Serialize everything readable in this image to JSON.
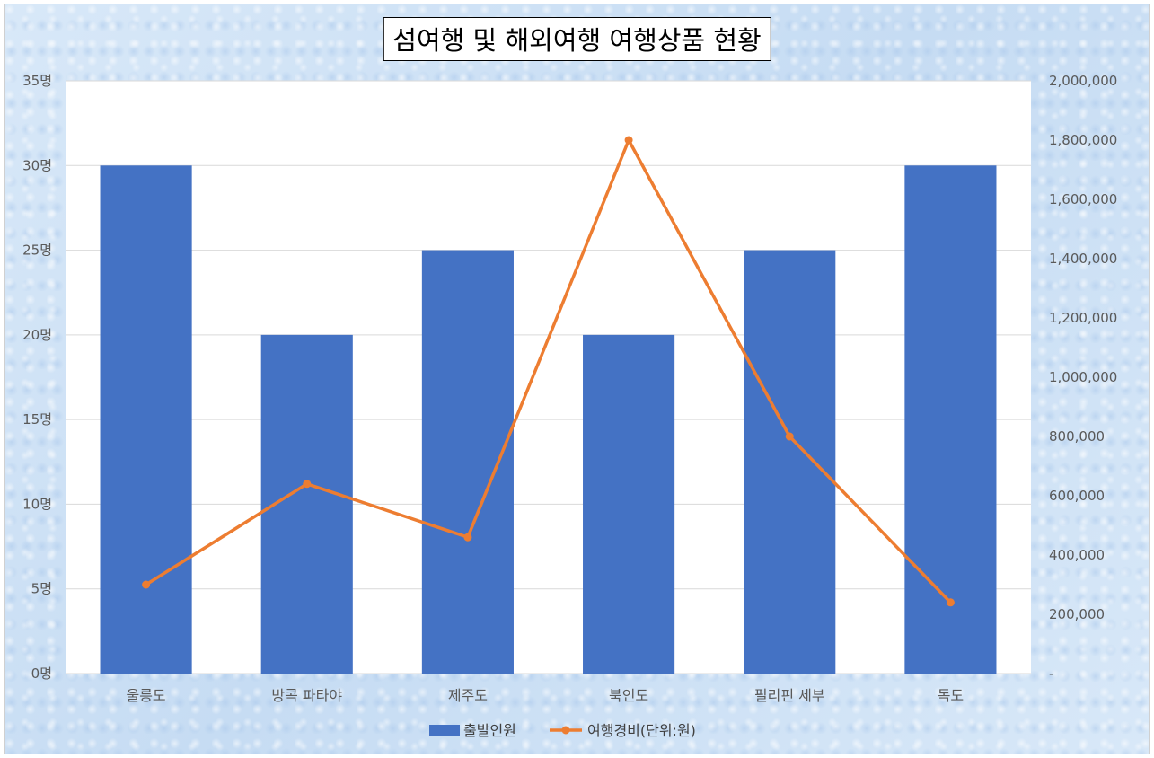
{
  "chart_data": {
    "type": "bar",
    "title": "섬여행 및 해외여행 여행상품 현황",
    "categories": [
      "울릉도",
      "방콕 파타야",
      "제주도",
      "북인도",
      "필리핀 세부",
      "독도"
    ],
    "series": [
      {
        "name": "출발인원",
        "type": "bar",
        "axis": "left",
        "values": [
          30,
          20,
          25,
          20,
          25,
          30
        ],
        "color": "#4472c4"
      },
      {
        "name": "여행경비(단위:원)",
        "type": "line",
        "axis": "right",
        "values": [
          300000,
          640000,
          460000,
          1800000,
          800000,
          240000
        ],
        "color": "#ed7d31"
      }
    ],
    "y_left": {
      "ylim": [
        0,
        35
      ],
      "ticks": [
        0,
        5,
        10,
        15,
        20,
        25,
        30,
        35
      ],
      "tick_labels": [
        "0명",
        "5명",
        "10명",
        "15명",
        "20명",
        "25명",
        "30명",
        "35명"
      ]
    },
    "y_right": {
      "ylim": [
        0,
        2000000
      ],
      "ticks": [
        0,
        200000,
        400000,
        600000,
        800000,
        1000000,
        1200000,
        1400000,
        1600000,
        1800000,
        2000000
      ],
      "tick_labels": [
        "-",
        "200,000",
        "400,000",
        "600,000",
        "800,000",
        "1,000,000",
        "1,200,000",
        "1,400,000",
        "1,600,000",
        "1,800,000",
        "2,000,000"
      ]
    },
    "grid": true,
    "legend": "bottom"
  }
}
